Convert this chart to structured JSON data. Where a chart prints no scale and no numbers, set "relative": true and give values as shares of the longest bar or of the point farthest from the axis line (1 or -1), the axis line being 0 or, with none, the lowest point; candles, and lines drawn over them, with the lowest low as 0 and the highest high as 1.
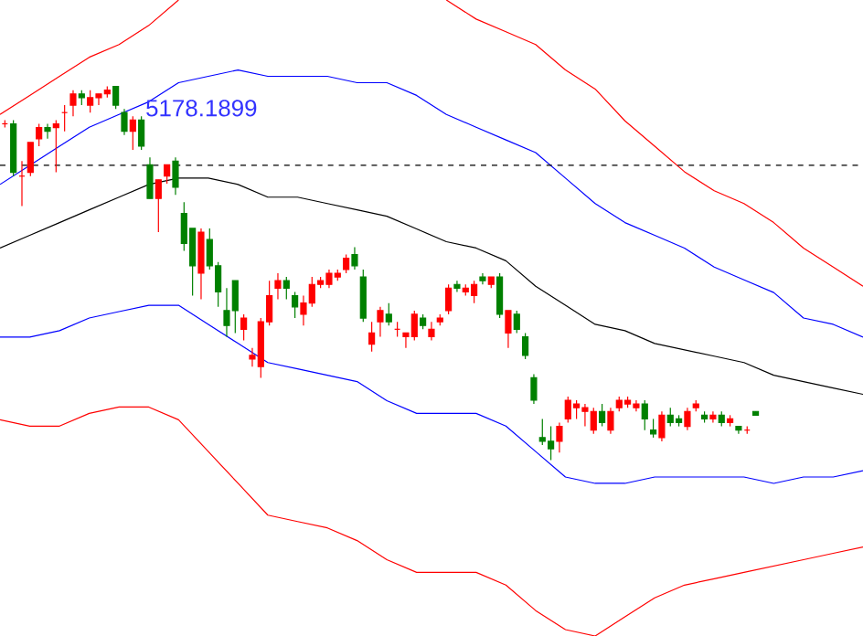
{
  "chart_data": [
    {
      "type": "candlestick",
      "relative": true,
      "categories": [
        null,
        null,
        null,
        null,
        null,
        null,
        null,
        null,
        null,
        null,
        null,
        null,
        null,
        null,
        null,
        null,
        null,
        null,
        null,
        null,
        null,
        null,
        null,
        null,
        null,
        null,
        null,
        null,
        null,
        null,
        null,
        null,
        null,
        null,
        null,
        null,
        null,
        null,
        null,
        null,
        null,
        null,
        null,
        null,
        null,
        null,
        null,
        null,
        null,
        null,
        null,
        null,
        null,
        null,
        null,
        null,
        null,
        null,
        null,
        null,
        null,
        null,
        null,
        null,
        null,
        null,
        null,
        null,
        null,
        null,
        null,
        null,
        null,
        null,
        null,
        null,
        null,
        null,
        null,
        null,
        null,
        null,
        null,
        null,
        null,
        null,
        null,
        null,
        null
      ],
      "ohlc": [
        [
          0.9,
          0.91,
          0.89,
          0.9
        ],
        [
          0.9,
          0.91,
          0.76,
          0.77
        ],
        [
          0.76,
          0.8,
          0.68,
          0.76
        ],
        [
          0.77,
          0.85,
          0.76,
          0.85
        ],
        [
          0.86,
          0.9,
          0.84,
          0.89
        ],
        [
          0.89,
          0.9,
          0.86,
          0.88
        ],
        [
          0.89,
          0.91,
          0.77,
          0.9
        ],
        [
          0.93,
          0.95,
          0.88,
          0.93
        ],
        [
          0.95,
          0.99,
          0.92,
          0.98
        ],
        [
          0.98,
          0.99,
          0.95,
          0.97
        ],
        [
          0.95,
          0.99,
          0.93,
          0.97
        ],
        [
          0.97,
          0.98,
          0.95,
          0.98
        ],
        [
          0.98,
          1.0,
          0.97,
          0.99
        ],
        [
          1.0,
          1.0,
          0.94,
          0.95
        ],
        [
          0.93,
          0.94,
          0.87,
          0.88
        ],
        [
          0.88,
          0.92,
          0.83,
          0.91
        ],
        [
          0.91,
          0.92,
          0.83,
          0.84
        ],
        [
          0.79,
          0.81,
          0.7,
          0.7
        ],
        [
          0.7,
          0.75,
          0.61,
          0.75
        ],
        [
          0.76,
          0.79,
          0.74,
          0.79
        ],
        [
          0.8,
          0.81,
          0.71,
          0.73
        ],
        [
          0.66,
          0.69,
          0.56,
          0.58
        ],
        [
          0.62,
          0.62,
          0.44,
          0.52
        ],
        [
          0.5,
          0.62,
          0.43,
          0.61
        ],
        [
          0.59,
          0.62,
          0.51,
          0.52
        ],
        [
          0.52,
          0.53,
          0.41,
          0.45
        ],
        [
          0.4,
          0.46,
          0.33,
          0.36
        ],
        [
          0.48,
          0.48,
          0.34,
          0.4
        ],
        [
          0.35,
          0.39,
          0.32,
          0.38
        ],
        [
          0.27,
          0.3,
          0.25,
          0.28
        ],
        [
          0.25,
          0.38,
          0.22,
          0.37
        ],
        [
          0.37,
          0.48,
          0.36,
          0.44
        ],
        [
          0.46,
          0.5,
          0.43,
          0.48
        ],
        [
          0.48,
          0.49,
          0.43,
          0.46
        ],
        [
          0.44,
          0.45,
          0.38,
          0.41
        ],
        [
          0.39,
          0.44,
          0.36,
          0.42
        ],
        [
          0.42,
          0.49,
          0.41,
          0.47
        ],
        [
          0.47,
          0.49,
          0.46,
          0.48
        ],
        [
          0.47,
          0.51,
          0.46,
          0.5
        ],
        [
          0.49,
          0.51,
          0.48,
          0.5
        ],
        [
          0.51,
          0.55,
          0.5,
          0.54
        ],
        [
          0.55,
          0.57,
          0.51,
          0.52
        ],
        [
          0.49,
          0.51,
          0.37,
          0.38
        ],
        [
          0.31,
          0.37,
          0.29,
          0.34
        ],
        [
          0.37,
          0.41,
          0.33,
          0.4
        ],
        [
          0.39,
          0.42,
          0.36,
          0.37
        ],
        [
          0.35,
          0.37,
          0.33,
          0.35
        ],
        [
          0.33,
          0.34,
          0.3,
          0.34
        ],
        [
          0.33,
          0.4,
          0.32,
          0.39
        ],
        [
          0.38,
          0.39,
          0.35,
          0.36
        ],
        [
          0.33,
          0.37,
          0.32,
          0.35
        ],
        [
          0.37,
          0.39,
          0.36,
          0.38
        ],
        [
          0.4,
          0.47,
          0.39,
          0.46
        ],
        [
          0.47,
          0.48,
          0.45,
          0.46
        ],
        [
          0.45,
          0.47,
          0.44,
          0.46
        ],
        [
          0.44,
          0.48,
          0.42,
          0.47
        ],
        [
          0.49,
          0.5,
          0.47,
          0.48
        ],
        [
          0.47,
          0.49,
          0.46,
          0.49
        ],
        [
          0.49,
          0.5,
          0.38,
          0.39
        ],
        [
          0.34,
          0.4,
          0.3,
          0.4
        ],
        [
          0.39,
          0.4,
          0.34,
          0.35
        ],
        [
          0.33,
          0.34,
          0.27,
          0.28
        ],
        [
          0.22,
          0.23,
          0.15,
          0.16
        ],
        [
          0.06,
          0.11,
          0.04,
          0.05
        ],
        [
          0.05,
          0.09,
          0.0,
          0.03
        ],
        [
          0.05,
          0.1,
          0.02,
          0.09
        ],
        [
          0.11,
          0.17,
          0.1,
          0.16
        ],
        [
          0.14,
          0.16,
          0.11,
          0.15
        ],
        [
          0.13,
          0.15,
          0.09,
          0.14
        ],
        [
          0.08,
          0.14,
          0.07,
          0.13
        ],
        [
          0.13,
          0.15,
          0.09,
          0.1
        ],
        [
          0.08,
          0.14,
          0.07,
          0.13
        ],
        [
          0.14,
          0.17,
          0.13,
          0.16
        ],
        [
          0.15,
          0.17,
          0.14,
          0.16
        ],
        [
          0.14,
          0.16,
          0.13,
          0.15
        ],
        [
          0.15,
          0.16,
          0.08,
          0.11
        ],
        [
          0.08,
          0.11,
          0.06,
          0.07
        ],
        [
          0.06,
          0.13,
          0.05,
          0.12
        ],
        [
          0.12,
          0.14,
          0.09,
          0.1
        ],
        [
          0.11,
          0.12,
          0.09,
          0.1
        ],
        [
          0.09,
          0.14,
          0.08,
          0.13
        ],
        [
          0.14,
          0.16,
          0.13,
          0.15
        ],
        [
          0.12,
          0.13,
          0.1,
          0.11
        ],
        [
          0.11,
          0.13,
          0.1,
          0.12
        ],
        [
          0.12,
          0.13,
          0.09,
          0.1
        ],
        [
          0.1,
          0.12,
          0.09,
          0.11
        ],
        [
          0.09,
          0.09,
          0.07,
          0.08
        ],
        [
          0.08,
          0.09,
          0.07,
          0.08
        ],
        [
          0.13,
          0.13,
          0.12,
          0.12
        ]
      ]
    },
    {
      "type": "line",
      "relative": true,
      "categories": [
        null,
        null,
        null,
        null,
        null,
        null,
        null,
        null,
        null,
        null,
        null,
        null,
        null,
        null,
        null,
        null,
        null,
        null,
        null,
        null,
        null,
        null,
        null,
        null,
        null,
        null,
        null,
        null,
        null,
        null
      ],
      "series": [
        {
          "color": "#ff0000",
          "values": [
            0.82,
            0.85,
            0.88,
            0.91,
            0.93,
            0.96,
            1.0,
            null,
            null,
            null,
            null,
            null,
            null,
            null,
            null,
            1.0,
            0.97,
            0.95,
            0.93,
            0.89,
            0.86,
            0.81,
            0.77,
            0.73,
            0.7,
            0.68,
            0.65,
            0.61,
            0.58,
            0.55
          ]
        },
        {
          "color": "#0000ff",
          "values": [
            0.71,
            0.74,
            0.77,
            0.8,
            0.82,
            0.84,
            0.87,
            0.88,
            0.89,
            0.88,
            0.88,
            0.88,
            0.87,
            0.87,
            0.85,
            0.82,
            0.8,
            0.78,
            0.76,
            0.72,
            0.68,
            0.65,
            0.63,
            0.61,
            0.58,
            0.56,
            0.54,
            0.5,
            0.49,
            0.47
          ]
        },
        {
          "color": "#000000",
          "values": [
            0.61,
            0.63,
            0.65,
            0.67,
            0.69,
            0.71,
            0.72,
            0.72,
            0.71,
            0.69,
            0.69,
            0.68,
            0.67,
            0.66,
            0.64,
            0.62,
            0.61,
            0.59,
            0.55,
            0.52,
            0.49,
            0.48,
            0.46,
            0.45,
            0.44,
            0.43,
            0.41,
            0.4,
            0.39,
            0.38
          ]
        },
        {
          "color": "#0000ff",
          "values": [
            0.47,
            0.47,
            0.48,
            0.5,
            0.51,
            0.52,
            0.52,
            0.49,
            0.46,
            0.43,
            0.42,
            0.41,
            0.4,
            0.37,
            0.35,
            0.35,
            0.35,
            0.33,
            0.29,
            0.25,
            0.24,
            0.24,
            0.25,
            0.25,
            0.25,
            0.25,
            0.24,
            0.25,
            0.25,
            0.26
          ]
        },
        {
          "color": "#ff0000",
          "values": [
            0.34,
            0.33,
            0.33,
            0.35,
            0.36,
            0.36,
            0.34,
            0.29,
            0.24,
            0.19,
            0.18,
            0.17,
            0.15,
            0.12,
            0.1,
            0.1,
            0.1,
            0.08,
            0.04,
            0.01,
            0.0,
            0.03,
            0.06,
            0.08,
            0.09,
            0.1,
            0.11,
            0.12,
            0.13,
            0.14
          ]
        }
      ],
      "ref_lines": [
        {
          "axis": "y",
          "value": 0.74,
          "color": "#000000",
          "line_style": "dashed"
        }
      ],
      "annotations": [
        "5178.1899"
      ]
    }
  ]
}
